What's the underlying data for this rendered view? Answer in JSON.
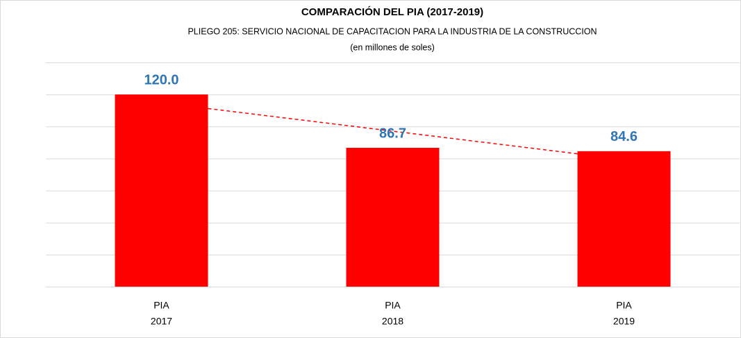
{
  "chart_data": {
    "type": "bar",
    "title": "COMPARACIÓN DEL PIA  (2017-2019)",
    "subtitle": "PLIEGO 205: SERVICIO NACIONAL DE CAPACITACION PARA LA INDUSTRIA DE LA CONSTRUCCION",
    "unit_label": "(en millones de soles)",
    "categories": [
      [
        "PIA",
        "2017"
      ],
      [
        "PIA",
        "2018"
      ],
      [
        "PIA",
        "2019"
      ]
    ],
    "values": [
      120,
      86.7,
      84.6
    ],
    "value_labels": [
      "120.0",
      "86.7",
      "84.6"
    ],
    "color": "#ff0000",
    "label_color": "#2e75b6",
    "ylim": [
      0,
      140
    ],
    "yticks": [
      0,
      20,
      40,
      60,
      80,
      100,
      120,
      140
    ],
    "grid": true,
    "trendline": {
      "type": "linear",
      "color": "#ff0000",
      "dashed": true
    }
  }
}
